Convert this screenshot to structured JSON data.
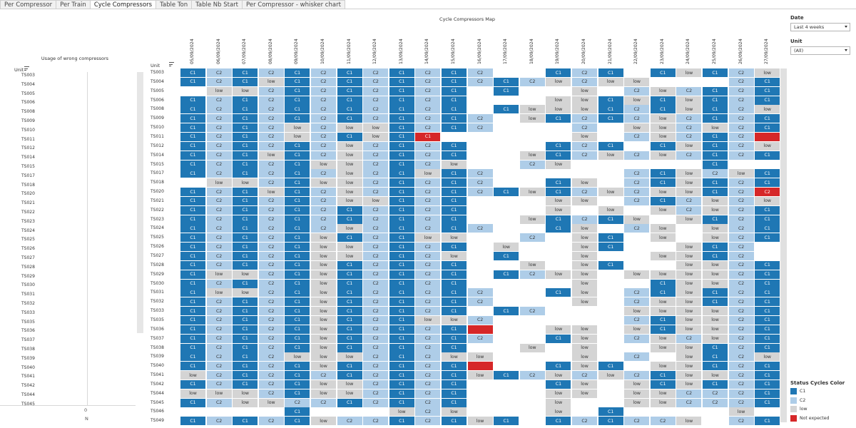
{
  "tabs": [
    {
      "label": "Per Compressor",
      "active": false
    },
    {
      "label": "Per Train",
      "active": false
    },
    {
      "label": "Cycle Compressors",
      "active": true
    },
    {
      "label": "Table Ton",
      "active": false
    },
    {
      "label": "Table Nb Start",
      "active": false
    },
    {
      "label": "Per Compressor - whisker chart",
      "active": false
    }
  ],
  "left_panel": {
    "title": "Usage of wrong compressors",
    "unit_header": "Unit",
    "units": [
      "TS003",
      "TS004",
      "TS005",
      "TS006",
      "TS008",
      "TS009",
      "TS010",
      "TS011",
      "TS012",
      "TS014",
      "TS015",
      "TS017",
      "TS018",
      "TS020",
      "TS021",
      "TS022",
      "TS023",
      "TS024",
      "TS025",
      "TS026",
      "TS027",
      "TS028",
      "TS029",
      "TS030",
      "TS031",
      "TS032",
      "TS033",
      "TS035",
      "TS036",
      "TS037",
      "TS038",
      "TS039",
      "TS040",
      "TS041",
      "TS042",
      "TS044",
      "TS045"
    ],
    "axis_value": "0",
    "axis_label": "N"
  },
  "map": {
    "title": "Cycle Compressors Map",
    "unit_header": "Unit",
    "dates": [
      "05/09/2024",
      "06/09/2024",
      "07/09/2024",
      "08/09/2024",
      "09/09/2024",
      "10/09/2024",
      "11/09/2024",
      "12/09/2024",
      "13/09/2024",
      "14/09/2024",
      "15/09/2024",
      "16/09/2024",
      "17/09/2024",
      "18/09/2024",
      "19/09/2024",
      "20/09/2024",
      "21/09/2024",
      "22/09/2024",
      "23/09/2024",
      "24/09/2024",
      "25/09/2024",
      "26/09/2024",
      "27/09/2024"
    ],
    "rows": [
      {
        "unit": "TS003",
        "cells": [
          "C1",
          "C2",
          "C1",
          "C2",
          "C1",
          "C2",
          "C1",
          "C2",
          "C1",
          "C2",
          "C1",
          "C2",
          "",
          "",
          "C1",
          "C2",
          "C1",
          "",
          "C1",
          "low",
          "C1",
          "C2",
          "low"
        ]
      },
      {
        "unit": "TS004",
        "cells": [
          "C1",
          "C2",
          "C1",
          "low",
          "C1",
          "C2",
          "C1",
          "C2",
          "C1",
          "C2",
          "C1",
          "C2",
          "C1",
          "C2",
          "low",
          "C2",
          "low",
          "low",
          "",
          "",
          "",
          "C2",
          "C1"
        ]
      },
      {
        "unit": "TS005",
        "cells": [
          "",
          "low",
          "low",
          "C2",
          "C1",
          "C2",
          "C1",
          "C2",
          "C1",
          "C2",
          "C1",
          "",
          "C1",
          "",
          "",
          "low",
          "",
          "C2",
          "low",
          "C2",
          "C1",
          "C2",
          "C1"
        ]
      },
      {
        "unit": "TS006",
        "cells": [
          "C1",
          "C2",
          "C1",
          "C2",
          "C1",
          "C2",
          "C1",
          "C2",
          "C1",
          "C2",
          "C1",
          "",
          "",
          "",
          "low",
          "low",
          "C1",
          "low",
          "C1",
          "low",
          "C1",
          "C2",
          "C1"
        ]
      },
      {
        "unit": "TS008",
        "cells": [
          "C1",
          "C2",
          "C1",
          "C2",
          "C1",
          "C2",
          "C1",
          "C2",
          "C1",
          "C2",
          "C1",
          "",
          "C1",
          "low",
          "low",
          "low",
          "C1",
          "C2",
          "C1",
          "low",
          "C1",
          "C2",
          "low"
        ]
      },
      {
        "unit": "TS009",
        "cells": [
          "C1",
          "C2",
          "C1",
          "C2",
          "C1",
          "C2",
          "C1",
          "C2",
          "C1",
          "C2",
          "C1",
          "C2",
          "",
          "low",
          "C1",
          "C2",
          "C1",
          "C2",
          "low",
          "C2",
          "C1",
          "C2",
          "C1"
        ]
      },
      {
        "unit": "TS010",
        "cells": [
          "C1",
          "C2",
          "C1",
          "C2",
          "low",
          "C2",
          "low",
          "low",
          "C1",
          "C2",
          "C1",
          "C2",
          "",
          "",
          "",
          "C2",
          "",
          "low",
          "low",
          "C2",
          "low",
          "C2",
          "C1"
        ]
      },
      {
        "unit": "TS011",
        "cells": [
          "C1",
          "C2",
          "C1",
          "C2",
          "low",
          "C2",
          "C1",
          "low",
          "C1",
          "C1",
          "",
          "",
          "",
          "",
          "",
          "low",
          "",
          "C2",
          "low",
          "C2",
          "C1",
          "C2",
          ""
        ]
      },
      {
        "unit": "TS012",
        "cells": [
          "C1",
          "C2",
          "C1",
          "C2",
          "C1",
          "C2",
          "low",
          "C2",
          "C1",
          "C2",
          "C1",
          "",
          "",
          "",
          "C1",
          "C2",
          "C1",
          "",
          "C1",
          "low",
          "C1",
          "C2",
          "low"
        ]
      },
      {
        "unit": "TS014",
        "cells": [
          "C1",
          "C2",
          "C1",
          "low",
          "C1",
          "C2",
          "low",
          "C2",
          "C1",
          "C2",
          "C1",
          "",
          "",
          "low",
          "C1",
          "C2",
          "low",
          "C2",
          "low",
          "C2",
          "C1",
          "C2",
          "C1"
        ]
      },
      {
        "unit": "TS015",
        "cells": [
          "C1",
          "C2",
          "C1",
          "C2",
          "C1",
          "low",
          "low",
          "C2",
          "C1",
          "C2",
          "low",
          "",
          "",
          "C2",
          "low",
          "",
          "",
          "",
          "",
          "",
          "C1",
          "",
          ""
        ]
      },
      {
        "unit": "TS017",
        "cells": [
          "C1",
          "C2",
          "C1",
          "C2",
          "C1",
          "C2",
          "low",
          "C2",
          "C1",
          "low",
          "C1",
          "C2",
          "",
          "",
          "",
          "",
          "",
          "C2",
          "C1",
          "low",
          "C2",
          "low",
          "C1"
        ]
      },
      {
        "unit": "TS018",
        "cells": [
          "",
          "low",
          "low",
          "C2",
          "C1",
          "low",
          "low",
          "C2",
          "C1",
          "C2",
          "C1",
          "C2",
          "",
          "",
          "C1",
          "low",
          "",
          "C2",
          "C1",
          "low",
          "C1",
          "C2",
          "C1"
        ]
      },
      {
        "unit": "TS020",
        "cells": [
          "C1",
          "C2",
          "C1",
          "low",
          "C1",
          "C2",
          "low",
          "C2",
          "C1",
          "C2",
          "C1",
          "C2",
          "C1",
          "low",
          "C1",
          "C2",
          "low",
          "C2",
          "low",
          "low",
          "C1",
          "C2",
          "C2"
        ]
      },
      {
        "unit": "TS021",
        "cells": [
          "C1",
          "C2",
          "C1",
          "C2",
          "C1",
          "C2",
          "low",
          "low",
          "C1",
          "C2",
          "C1",
          "",
          "",
          "",
          "low",
          "low",
          "",
          "C2",
          "C1",
          "C2",
          "low",
          "C2",
          "low"
        ]
      },
      {
        "unit": "TS022",
        "cells": [
          "C1",
          "C2",
          "C1",
          "C2",
          "C1",
          "C2",
          "C1",
          "C2",
          "C1",
          "C2",
          "C1",
          "",
          "",
          "",
          "low",
          "",
          "low",
          "",
          "low",
          "C2",
          "low",
          "C2",
          "C1"
        ]
      },
      {
        "unit": "TS023",
        "cells": [
          "C1",
          "C2",
          "C1",
          "C2",
          "C1",
          "C2",
          "C1",
          "C2",
          "C1",
          "C2",
          "C1",
          "",
          "",
          "low",
          "C1",
          "C2",
          "C1",
          "low",
          "",
          "low",
          "C1",
          "C2",
          "C1"
        ]
      },
      {
        "unit": "TS024",
        "cells": [
          "C1",
          "C2",
          "C1",
          "C2",
          "C1",
          "C2",
          "low",
          "C2",
          "C1",
          "C2",
          "C1",
          "C2",
          "",
          "",
          "C1",
          "low",
          "",
          "C2",
          "low",
          "",
          "low",
          "C2",
          "C1"
        ]
      },
      {
        "unit": "TS025",
        "cells": [
          "C1",
          "C2",
          "C1",
          "C2",
          "C1",
          "low",
          "C1",
          "C2",
          "C1",
          "low",
          "low",
          "",
          "",
          "C2",
          "",
          "low",
          "C1",
          "",
          "low",
          "",
          "low",
          "C2",
          "C1"
        ]
      },
      {
        "unit": "TS026",
        "cells": [
          "C1",
          "C2",
          "C1",
          "C2",
          "C1",
          "low",
          "low",
          "C2",
          "C1",
          "C2",
          "C1",
          "",
          "low",
          "",
          "",
          "low",
          "C1",
          "",
          "",
          "low",
          "C1",
          "C2",
          ""
        ]
      },
      {
        "unit": "TS027",
        "cells": [
          "C1",
          "C2",
          "C1",
          "C2",
          "C1",
          "low",
          "low",
          "C2",
          "C1",
          "C2",
          "low",
          "",
          "C1",
          "",
          "",
          "low",
          "",
          "",
          "low",
          "low",
          "C1",
          "C2",
          ""
        ]
      },
      {
        "unit": "TS028",
        "cells": [
          "C1",
          "C2",
          "C1",
          "C2",
          "C1",
          "low",
          "C1",
          "C2",
          "C1",
          "C2",
          "C1",
          "",
          "",
          "low",
          "",
          "low",
          "C1",
          "",
          "",
          "low",
          "low",
          "C2",
          "C1"
        ]
      },
      {
        "unit": "TS029",
        "cells": [
          "C1",
          "low",
          "low",
          "C2",
          "C1",
          "low",
          "C1",
          "C2",
          "C1",
          "C2",
          "C1",
          "",
          "C1",
          "C2",
          "low",
          "low",
          "",
          "low",
          "low",
          "low",
          "low",
          "C2",
          "C1"
        ]
      },
      {
        "unit": "TS030",
        "cells": [
          "C1",
          "C2",
          "C1",
          "C2",
          "C1",
          "low",
          "C1",
          "C2",
          "C1",
          "C2",
          "C1",
          "",
          "",
          "",
          "",
          "low",
          "",
          "",
          "C1",
          "low",
          "low",
          "C2",
          "C1"
        ]
      },
      {
        "unit": "TS031",
        "cells": [
          "C1",
          "low",
          "low",
          "C2",
          "C1",
          "low",
          "C1",
          "C2",
          "C1",
          "C2",
          "C1",
          "C2",
          "",
          "",
          "C1",
          "low",
          "",
          "C2",
          "C1",
          "low",
          "C1",
          "C2",
          "C1"
        ]
      },
      {
        "unit": "TS032",
        "cells": [
          "C1",
          "C2",
          "C1",
          "C2",
          "C1",
          "low",
          "C1",
          "C2",
          "C1",
          "C2",
          "C1",
          "C2",
          "",
          "",
          "",
          "low",
          "",
          "C2",
          "low",
          "low",
          "C1",
          "C2",
          "C1"
        ]
      },
      {
        "unit": "TS033",
        "cells": [
          "C1",
          "C2",
          "C1",
          "C2",
          "C1",
          "low",
          "C1",
          "C2",
          "C1",
          "C2",
          "C1",
          "",
          "C1",
          "C2",
          "",
          "",
          "",
          "low",
          "low",
          "low",
          "low",
          "C2",
          "C1"
        ]
      },
      {
        "unit": "TS035",
        "cells": [
          "C1",
          "C2",
          "C1",
          "C2",
          "C1",
          "low",
          "C1",
          "C2",
          "C1",
          "low",
          "low",
          "C2",
          "",
          "",
          "",
          "",
          "",
          "C2",
          "C1",
          "low",
          "low",
          "C2",
          "C1"
        ]
      },
      {
        "unit": "TS036",
        "cells": [
          "C1",
          "C2",
          "C1",
          "C2",
          "C1",
          "low",
          "C1",
          "C2",
          "C1",
          "C2",
          "C1",
          "",
          "",
          "",
          "low",
          "low",
          "",
          "low",
          "C1",
          "low",
          "low",
          "C2",
          "C1"
        ]
      },
      {
        "unit": "TS037",
        "cells": [
          "C1",
          "C2",
          "C1",
          "C2",
          "C1",
          "low",
          "C1",
          "C2",
          "C1",
          "C2",
          "C1",
          "C2",
          "",
          "",
          "C1",
          "low",
          "",
          "C2",
          "low",
          "C2",
          "low",
          "C2",
          "C1"
        ]
      },
      {
        "unit": "TS038",
        "cells": [
          "C1",
          "C2",
          "C1",
          "C2",
          "C1",
          "low",
          "C1",
          "C2",
          "C1",
          "C2",
          "C1",
          "",
          "",
          "low",
          "",
          "low",
          "",
          "",
          "low",
          "low",
          "C1",
          "C2",
          "C1"
        ]
      },
      {
        "unit": "TS039",
        "cells": [
          "C1",
          "C2",
          "C1",
          "C2",
          "low",
          "low",
          "low",
          "C2",
          "C1",
          "C2",
          "low",
          "low",
          "",
          "",
          "",
          "low",
          "",
          "C2",
          "",
          "low",
          "C1",
          "C2",
          "low"
        ]
      },
      {
        "unit": "TS040",
        "cells": [
          "C1",
          "C2",
          "C1",
          "C2",
          "C1",
          "low",
          "C1",
          "C2",
          "C1",
          "C2",
          "C1",
          "",
          "",
          "",
          "C1",
          "low",
          "C1",
          "",
          "low",
          "low",
          "C1",
          "C2",
          "C1"
        ]
      },
      {
        "unit": "TS041",
        "cells": [
          "low",
          "C2",
          "C1",
          "C2",
          "C1",
          "C2",
          "C1",
          "C2",
          "C1",
          "C2",
          "C1",
          "low",
          "C1",
          "C2",
          "low",
          "C2",
          "low",
          "C2",
          "C1",
          "low",
          "low",
          "C2",
          "C1"
        ]
      },
      {
        "unit": "TS042",
        "cells": [
          "C1",
          "C2",
          "C1",
          "C2",
          "C1",
          "low",
          "low",
          "C2",
          "C1",
          "C2",
          "C1",
          "",
          "",
          "",
          "C1",
          "low",
          "",
          "low",
          "C1",
          "low",
          "C1",
          "C2",
          "C1"
        ]
      },
      {
        "unit": "TS044",
        "cells": [
          "low",
          "low",
          "low",
          "C2",
          "C1",
          "low",
          "low",
          "C2",
          "C1",
          "C2",
          "C1",
          "",
          "",
          "",
          "low",
          "low",
          "",
          "low",
          "low",
          "C2",
          "C2",
          "C2",
          "C1"
        ]
      },
      {
        "unit": "TS045",
        "cells": [
          "C1",
          "C2",
          "low",
          "low",
          "C2",
          "C2",
          "C1",
          "C2",
          "C1",
          "C2",
          "C1",
          "",
          "",
          "",
          "low",
          "",
          "",
          "low",
          "low",
          "C2",
          "C2",
          "C2",
          "C1"
        ]
      },
      {
        "unit": "TS046",
        "cells": [
          "",
          "",
          "",
          "",
          "C1",
          "",
          "",
          "",
          "low",
          "C2",
          "low",
          "",
          "",
          "",
          "low",
          "",
          "C1",
          "",
          "",
          "",
          "",
          "low",
          ""
        ]
      },
      {
        "unit": "TS049",
        "cells": [
          "C1",
          "C2",
          "C1",
          "C2",
          "C1",
          "low",
          "C2",
          "C2",
          "C1",
          "C2",
          "C1",
          "low",
          "C1",
          "",
          "C1",
          "C2",
          "C1",
          "C2",
          "C2",
          "low",
          "",
          "C2",
          "C1"
        ]
      }
    ],
    "not_expected_cells": [
      [
        7,
        9
      ],
      [
        7,
        22
      ],
      [
        13,
        22
      ],
      [
        28,
        11
      ],
      [
        32,
        11
      ]
    ]
  },
  "filters": {
    "date_label": "Date",
    "date_value": "Last 4 weeks",
    "unit_label": "Unit",
    "unit_value": "(All)"
  },
  "legend": {
    "title": "Status Cycles Color",
    "items": [
      {
        "label": "C1",
        "color": "#1f77b4"
      },
      {
        "label": "C2",
        "color": "#aecde8"
      },
      {
        "label": "low",
        "color": "#d4d4d4"
      },
      {
        "label": "Not expected",
        "color": "#d62728"
      }
    ]
  }
}
